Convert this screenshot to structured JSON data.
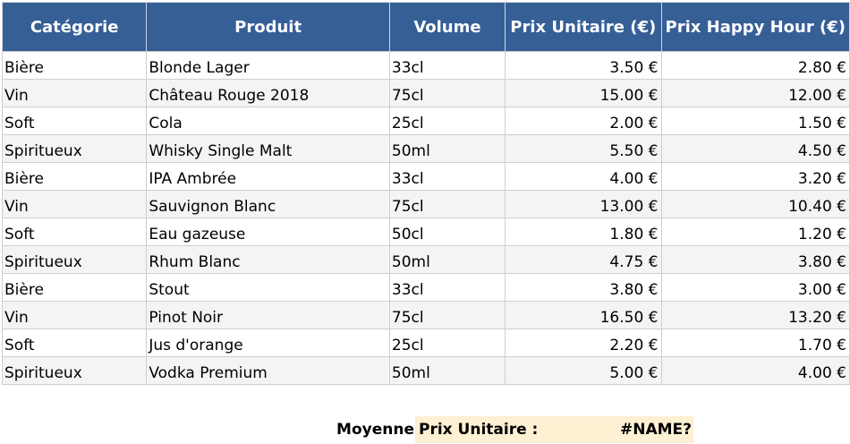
{
  "table": {
    "headers": [
      "Catégorie",
      "Produit",
      "Volume",
      "Prix Unitaire (€)",
      "Prix Happy Hour (€)"
    ],
    "rows": [
      [
        "Bière",
        "Blonde Lager",
        "33cl",
        "3.50 €",
        "2.80 €"
      ],
      [
        "Vin",
        "Château Rouge 2018",
        "75cl",
        "15.00 €",
        "12.00 €"
      ],
      [
        "Soft",
        "Cola",
        "25cl",
        "2.00 €",
        "1.50 €"
      ],
      [
        "Spiritueux",
        "Whisky Single Malt",
        "50ml",
        "5.50 €",
        "4.50 €"
      ],
      [
        "Bière",
        "IPA Ambrée",
        "33cl",
        "4.00 €",
        "3.20 €"
      ],
      [
        "Vin",
        "Sauvignon Blanc",
        "75cl",
        "13.00 €",
        "10.40 €"
      ],
      [
        "Soft",
        "Eau gazeuse",
        "50cl",
        "1.80 €",
        "1.20 €"
      ],
      [
        "Spiritueux",
        "Rhum Blanc",
        "50ml",
        "4.75 €",
        "3.80 €"
      ],
      [
        "Bière",
        "Stout",
        "33cl",
        "3.80 €",
        "3.00 €"
      ],
      [
        "Vin",
        "Pinot Noir",
        "75cl",
        "16.50 €",
        "13.20 €"
      ],
      [
        "Soft",
        "Jus d'orange",
        "25cl",
        "2.20 €",
        "1.70 €"
      ],
      [
        "Spiritueux",
        "Vodka Premium",
        "50ml",
        "5.00 €",
        "4.00 €"
      ]
    ]
  },
  "summary": {
    "label_left": "Moyenne",
    "label_right": "Prix Unitaire :",
    "value": "#NAME?"
  },
  "colors": {
    "header_bg": "#365f96",
    "summary_bg": "#fdf0d3"
  }
}
